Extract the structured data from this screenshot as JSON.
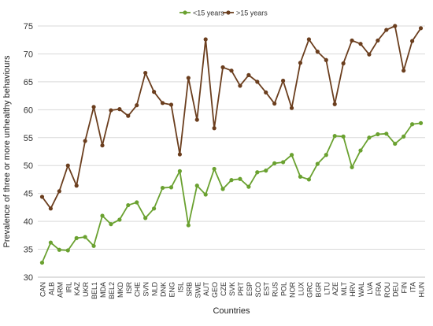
{
  "chart_data": {
    "type": "line",
    "xlabel": "Countries",
    "ylabel": "Prevalence of three or more unhealthy behaviours",
    "ylim": [
      30,
      75
    ],
    "yticks": [
      30,
      35,
      40,
      45,
      50,
      55,
      60,
      65,
      70,
      75
    ],
    "grid": "horizontal",
    "legend_position": "top-center",
    "categories": [
      "CAN",
      "ALB",
      "ARM",
      "IRL",
      "KAZ",
      "UKR",
      "BEL1",
      "MDA",
      "BEL2",
      "MKD",
      "ISR",
      "CHE",
      "SVN",
      "NLD",
      "DNK",
      "ENG",
      "ISL",
      "SRB",
      "SWE",
      "AUT",
      "GEO",
      "CZE",
      "SVK",
      "PRT",
      "ESP",
      "SCO",
      "EST",
      "RUS",
      "POL",
      "NOR",
      "LUX",
      "GRC",
      "BGR",
      "LTU",
      "AZE",
      "MLT",
      "HRV",
      "WAL",
      "LVA",
      "FRA",
      "ROU",
      "DEU",
      "FIN",
      "ITA",
      "HUN"
    ],
    "series": [
      {
        "name": "<15 years",
        "color": "#6aa130",
        "values": [
          32.6,
          36.2,
          34.9,
          34.8,
          37.0,
          37.2,
          35.6,
          41.0,
          39.5,
          40.3,
          42.9,
          43.4,
          40.6,
          42.3,
          46.0,
          46.1,
          49.0,
          39.3,
          46.4,
          44.8,
          49.4,
          45.8,
          47.4,
          47.6,
          46.2,
          48.8,
          49.1,
          50.4,
          50.6,
          51.9,
          48.0,
          47.5,
          50.3,
          51.9,
          55.3,
          55.2,
          49.7,
          52.7,
          55.0,
          55.6,
          55.7,
          53.9,
          55.2,
          57.4,
          57.6
        ]
      },
      {
        "name": ">15 years",
        "color": "#6b3e1e",
        "values": [
          44.4,
          42.3,
          45.4,
          50.0,
          46.4,
          54.4,
          60.5,
          53.6,
          59.9,
          60.1,
          58.9,
          60.8,
          66.6,
          63.2,
          61.2,
          60.9,
          52.0,
          65.7,
          58.2,
          72.6,
          56.7,
          67.6,
          67.0,
          64.3,
          66.2,
          65.0,
          63.1,
          61.1,
          65.2,
          60.3,
          68.4,
          72.6,
          70.4,
          68.9,
          61.0,
          68.3,
          72.4,
          71.8,
          69.9,
          72.4,
          74.3,
          75.0,
          67.0,
          72.3,
          74.6
        ]
      }
    ]
  }
}
